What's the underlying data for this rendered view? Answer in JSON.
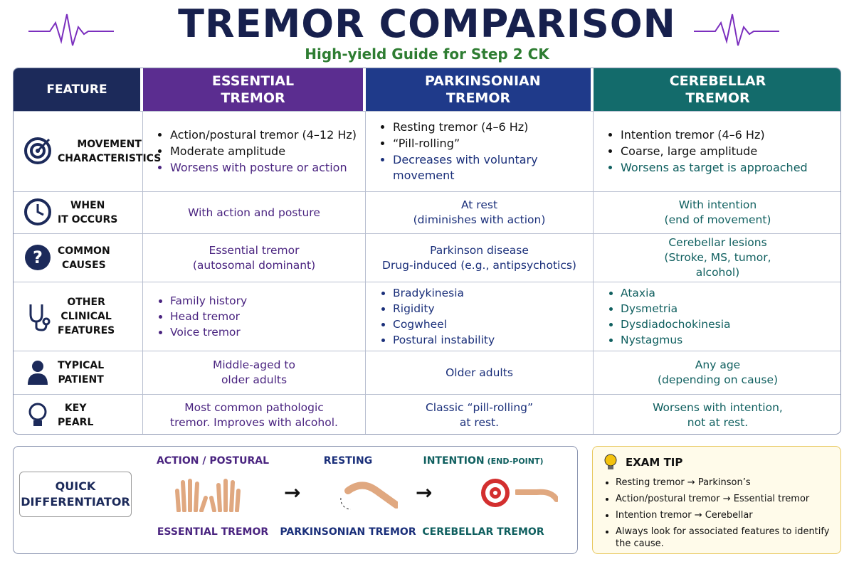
{
  "header": {
    "title": "TREMOR COMPARISON",
    "subtitle": "High-yield Guide for Step 2 CK"
  },
  "table": {
    "columns": [
      "FEATURE",
      "ESSENTIAL TREMOR",
      "PARKINSONIAN TREMOR",
      "CEREBELLAR TREMOR"
    ],
    "rows": [
      {
        "label": [
          "MOVEMENT",
          "CHARACTERISTICS"
        ],
        "cells": [
          {
            "bullets": [
              "Action/postural tremor (4–12 Hz)",
              "Moderate amplitude",
              "Worsens with posture or action"
            ]
          },
          {
            "bullets": [
              "Resting tremor (4–6 Hz)",
              "“Pill-rolling”",
              "Decreases with voluntary movement"
            ]
          },
          {
            "bullets": [
              "Intention tremor (4–6 Hz)",
              "Coarse, large amplitude",
              "Worsens as target is approached"
            ]
          }
        ]
      },
      {
        "label": [
          "WHEN",
          "IT OCCURS"
        ],
        "cells": [
          {
            "lines": [
              "With action and posture"
            ]
          },
          {
            "lines": [
              "At rest",
              "(diminishes with action)"
            ]
          },
          {
            "lines": [
              "With intention",
              "(end of movement)"
            ]
          }
        ]
      },
      {
        "label": [
          "COMMON",
          "CAUSES"
        ],
        "cells": [
          {
            "lines": [
              "Essential tremor",
              "(autosomal dominant)"
            ]
          },
          {
            "lines": [
              "Parkinson disease",
              "Drug-induced (e.g., antipsychotics)"
            ]
          },
          {
            "lines": [
              "Cerebellar lesions",
              "(Stroke, MS, tumor,",
              "alcohol)"
            ]
          }
        ]
      },
      {
        "label": [
          "OTHER",
          "CLINICAL",
          "FEATURES"
        ],
        "cells": [
          {
            "bullets": [
              "Family history",
              "Head tremor",
              "Voice tremor"
            ]
          },
          {
            "bullets": [
              "Bradykinesia",
              "Rigidity",
              "Cogwheel",
              "Postural instability"
            ]
          },
          {
            "bullets": [
              "Ataxia",
              "Dysmetria",
              "Dysdiadochokinesia",
              "Nystagmus"
            ]
          }
        ]
      },
      {
        "label": [
          "TYPICAL",
          "PATIENT"
        ],
        "cells": [
          {
            "lines": [
              "Middle-aged to",
              "older adults"
            ]
          },
          {
            "lines": [
              "Older adults"
            ]
          },
          {
            "lines": [
              "Any age",
              "(depending on cause)"
            ]
          }
        ]
      },
      {
        "label": [
          "KEY",
          "PEARL"
        ],
        "cells": [
          {
            "lines": [
              "Most common pathologic",
              "tremor. Improves with alcohol."
            ]
          },
          {
            "lines": [
              "Classic “pill-rolling”",
              "at rest."
            ]
          },
          {
            "lines": [
              "Worsens with intention,",
              "not at rest."
            ]
          }
        ]
      }
    ]
  },
  "differentiator": {
    "label": [
      "QUICK",
      "DIFFERENTIATOR"
    ],
    "items": [
      {
        "top": "ACTION / POSTURAL",
        "bottom": "ESSENTIAL TREMOR"
      },
      {
        "top": "RESTING",
        "bottom": "PARKINSONIAN TREMOR"
      },
      {
        "top": "INTENTION",
        "note": "(END-POINT)",
        "bottom": "CEREBELLAR TREMOR"
      }
    ]
  },
  "exam_tip": {
    "title": "EXAM TIP",
    "items": [
      "Resting tremor → Parkinson’s",
      "Action/postural tremor → Essential tremor",
      "Intention tremor → Cerebellar",
      "Always look for associated features to identify the cause."
    ]
  }
}
